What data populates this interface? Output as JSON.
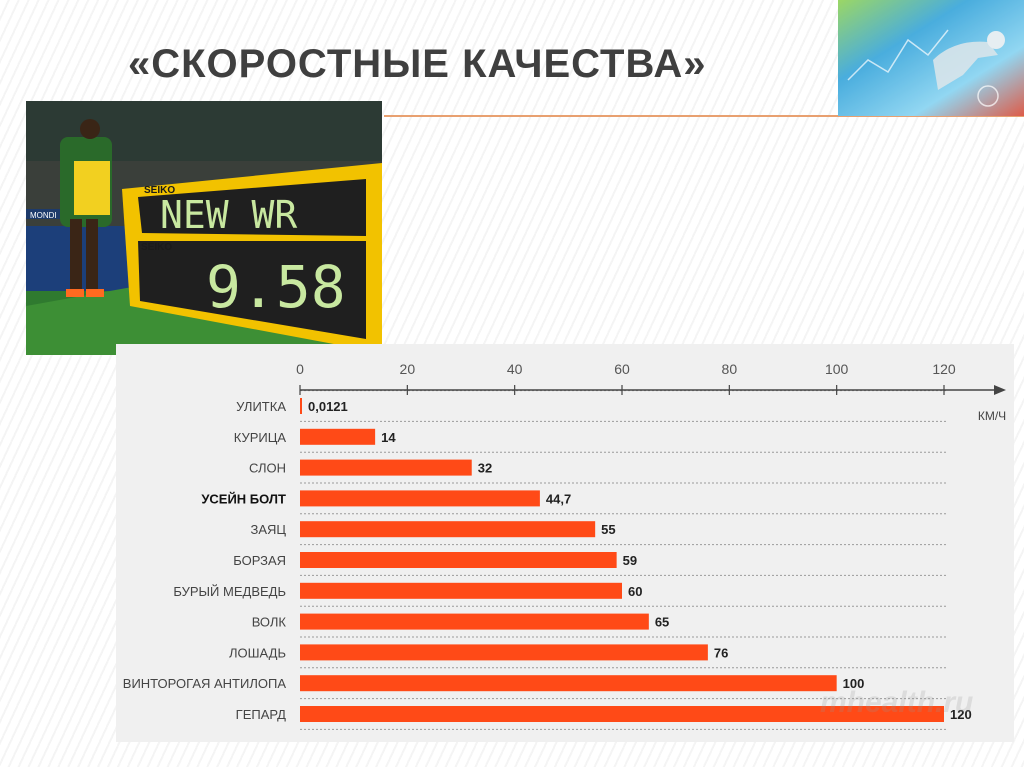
{
  "slide": {
    "title": "«СКОРОСТНЫЕ КАЧЕСТВА»",
    "watermark": "mhealth.ru"
  },
  "photo": {
    "brand": "SEIKO",
    "brand2": "SEIKO",
    "board_top": "NEW WR",
    "board_time": "9.58",
    "banner": "MONDI"
  },
  "colors": {
    "bar": "#ff4a17",
    "title": "#3f3f3f",
    "accent_line": "#e8a070"
  },
  "chart_data": {
    "type": "bar",
    "orientation": "horizontal",
    "unit_label": "КМ/Ч",
    "xlim": [
      0,
      120
    ],
    "xticks": [
      0,
      20,
      40,
      60,
      80,
      100,
      120
    ],
    "xtick_labels": [
      "0",
      "20",
      "40",
      "60",
      "80",
      "100",
      "120"
    ],
    "grid": true,
    "categories": [
      "УЛИТКА",
      "КУРИЦА",
      "СЛОН",
      "УСЕЙН БОЛТ",
      "ЗАЯЦ",
      "БОРЗАЯ",
      "БУРЫЙ МЕДВЕДЬ",
      "ВОЛК",
      "ЛОШАДЬ",
      "ВИНТОРОГАЯ АНТИЛОПА",
      "ГЕПАРД"
    ],
    "values": [
      0.0121,
      14,
      32,
      44.7,
      55,
      59,
      60,
      65,
      76,
      100,
      120
    ],
    "value_labels": [
      "0,0121",
      "14",
      "32",
      "44,7",
      "55",
      "59",
      "60",
      "65",
      "76",
      "100",
      "120"
    ],
    "highlight_category": "УСЕЙН БОЛТ"
  }
}
